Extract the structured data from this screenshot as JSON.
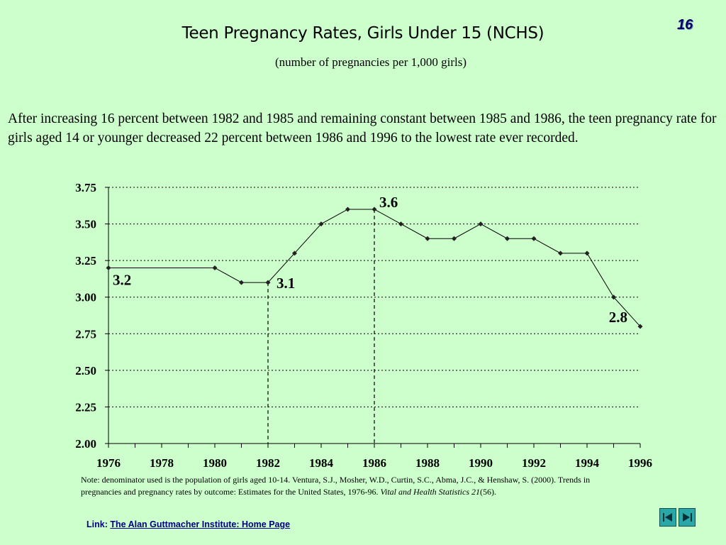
{
  "slide_number": "16",
  "title": "Teen Pregnancy Rates, Girls Under 15 (NCHS)",
  "subtitle": "(number of pregnancies per 1,000 girls)",
  "body": "After increasing 16 percent between 1982 and 1985 and remaining constant between 1985 and 1986, the teen pregnancy rate for girls aged 14 or younger decreased 22 percent between 1986 and 1996 to the lowest rate ever recorded.",
  "note": {
    "prefix": "Note: denominator used is the population of girls aged 10-14. Ventura, S.J., Mosher, W.D., Curtin, S.C., Abma, J.C., & Henshaw, S. (2000). Trends in pregnancies and pregnancy rates by outcome: Estimates for the United States, 1976-96. ",
    "journal": "Vital and Health Statistics 21",
    "suffix": "(56)."
  },
  "link": {
    "label": "Link:",
    "text": "The Alan Guttmacher Institute: Home Page"
  },
  "nav": {
    "prev_icon": "previous-slide-icon",
    "next_icon": "next-slide-icon"
  },
  "colors": {
    "background": "#ccffcc",
    "line": "#000000",
    "slide_number": "#000066",
    "nav_button": "#2aa7a7"
  },
  "chart_data": {
    "type": "line",
    "title": "",
    "xlabel": "",
    "ylabel": "",
    "xlim": [
      1976,
      1996
    ],
    "ylim": [
      2.0,
      3.75
    ],
    "x_ticks": [
      "1976",
      "1978",
      "1980",
      "1982",
      "1984",
      "1986",
      "1988",
      "1990",
      "1992",
      "1994",
      "1996"
    ],
    "y_ticks": [
      "2.00",
      "2.25",
      "2.50",
      "2.75",
      "3.00",
      "3.25",
      "3.50",
      "3.75"
    ],
    "grid": "horizontal dotted",
    "series": [
      {
        "x": [
          1976,
          1980,
          1981,
          1982,
          1983,
          1984,
          1985,
          1986,
          1987,
          1988,
          1989,
          1990,
          1991,
          1992,
          1993,
          1994,
          1995,
          1996
        ],
        "y": [
          3.2,
          3.2,
          3.1,
          3.1,
          3.3,
          3.5,
          3.6,
          3.6,
          3.5,
          3.4,
          3.4,
          3.5,
          3.4,
          3.4,
          3.3,
          3.3,
          3.0,
          2.8
        ]
      }
    ],
    "annotations": [
      {
        "x": 1976,
        "y": 3.2,
        "text": "3.2"
      },
      {
        "x": 1982,
        "y": 3.1,
        "text": "3.1"
      },
      {
        "x": 1986,
        "y": 3.6,
        "text": "3.6"
      },
      {
        "x": 1996,
        "y": 2.8,
        "text": "2.8"
      }
    ],
    "reference_lines_x": [
      1982,
      1986
    ]
  }
}
